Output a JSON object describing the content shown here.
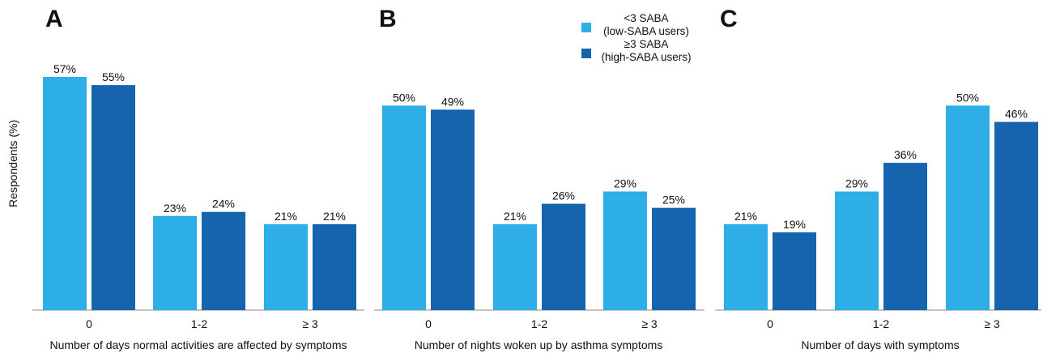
{
  "y_axis_label": "Respondents (%)",
  "legend": {
    "items": [
      {
        "line1": "<3 SABA",
        "line2": "(low-SABA users)",
        "color": "#2eaee6"
      },
      {
        "line1": "≥3 SABA",
        "line2": "(high-SABA users)",
        "color": "#1663ae"
      }
    ]
  },
  "chart_data": [
    {
      "type": "bar",
      "panel": "A",
      "categories": [
        "0",
        "1-2",
        "≥ 3"
      ],
      "xlabel": "Number of days normal activities are affected by symptoms",
      "ylabel": "Respondents (%)",
      "ylim": [
        0,
        57
      ],
      "series": [
        {
          "name": "<3 SABA (low-SABA users)",
          "values": [
            57,
            23,
            21
          ]
        },
        {
          "name": "≥3 SABA (high-SABA users)",
          "values": [
            55,
            24,
            21
          ]
        }
      ]
    },
    {
      "type": "bar",
      "panel": "B",
      "categories": [
        "0",
        "1-2",
        "≥ 3"
      ],
      "xlabel": "Number of nights woken up  by asthma symptoms",
      "ylim": [
        0,
        57
      ],
      "series": [
        {
          "name": "<3 SABA (low-SABA users)",
          "values": [
            50,
            21,
            29
          ]
        },
        {
          "name": "≥3 SABA (high-SABA users)",
          "values": [
            49,
            26,
            25
          ]
        }
      ]
    },
    {
      "type": "bar",
      "panel": "C",
      "categories": [
        "0",
        "1-2",
        "≥ 3"
      ],
      "xlabel": "Number of days with symptoms",
      "ylim": [
        0,
        57
      ],
      "series": [
        {
          "name": "<3 SABA (low-SABA users)",
          "values": [
            21,
            29,
            50
          ]
        },
        {
          "name": "≥3 SABA (high-SABA users)",
          "values": [
            19,
            36,
            46
          ]
        }
      ]
    }
  ]
}
